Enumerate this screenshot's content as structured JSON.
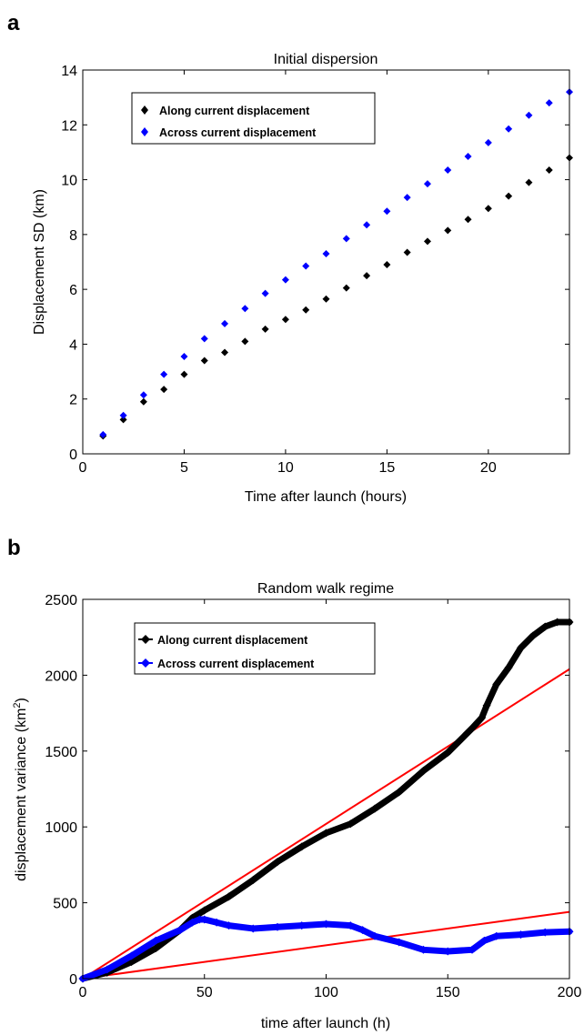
{
  "figure": {
    "panel_a_letter": "a",
    "panel_b_letter": "b"
  },
  "chart_data": [
    {
      "type": "scatter",
      "title": "Initial dispersion",
      "xlabel": "Time after launch (hours)",
      "ylabel": "Displacement SD (km)",
      "xlim": [
        0,
        24
      ],
      "ylim": [
        0,
        14
      ],
      "xticks": [
        "0",
        "5",
        "10",
        "15",
        "20"
      ],
      "yticks": [
        "0",
        "2",
        "4",
        "6",
        "8",
        "10",
        "12",
        "14"
      ],
      "legend_position": "top-left",
      "series": [
        {
          "name": "Along current displacement",
          "color": "#000000",
          "marker": "diamond",
          "x": [
            1,
            2,
            3,
            4,
            5,
            6,
            7,
            8,
            9,
            10,
            11,
            12,
            13,
            14,
            15,
            16,
            17,
            18,
            19,
            20,
            21,
            22,
            23,
            24
          ],
          "y": [
            0.65,
            1.25,
            1.9,
            2.35,
            2.9,
            3.4,
            3.7,
            4.1,
            4.55,
            4.9,
            5.25,
            5.65,
            6.05,
            6.5,
            6.9,
            7.35,
            7.75,
            8.15,
            8.55,
            8.95,
            9.4,
            9.9,
            10.35,
            10.8
          ]
        },
        {
          "name": "Across current displacement",
          "color": "#0000ff",
          "marker": "diamond",
          "x": [
            1,
            2,
            3,
            4,
            5,
            6,
            7,
            8,
            9,
            10,
            11,
            12,
            13,
            14,
            15,
            16,
            17,
            18,
            19,
            20,
            21,
            22,
            23,
            24
          ],
          "y": [
            0.7,
            1.4,
            2.15,
            2.9,
            3.55,
            4.2,
            4.75,
            5.3,
            5.85,
            6.35,
            6.85,
            7.3,
            7.85,
            8.35,
            8.85,
            9.35,
            9.85,
            10.35,
            10.85,
            11.35,
            11.85,
            12.35,
            12.8,
            13.2
          ]
        }
      ]
    },
    {
      "type": "line",
      "title": "Random walk regime",
      "xlabel": "time after launch (h)",
      "ylabel_main": "displacement variance (km",
      "ylabel_sup": "2",
      "ylabel_end": ")",
      "xlim": [
        0,
        200
      ],
      "ylim": [
        0,
        2500
      ],
      "xticks": [
        "0",
        "50",
        "100",
        "150",
        "200"
      ],
      "yticks": [
        "0",
        "500",
        "1000",
        "1500",
        "2000",
        "2500"
      ],
      "legend_position": "top-left",
      "series": [
        {
          "name": "Along current displacement",
          "color": "#000000",
          "marker": "diamond",
          "x": [
            0,
            10,
            20,
            30,
            40,
            45,
            50,
            60,
            70,
            80,
            90,
            100,
            110,
            120,
            130,
            140,
            150,
            160,
            164,
            166,
            170,
            175,
            180,
            185,
            190,
            195,
            200
          ],
          "y": [
            0,
            40,
            110,
            200,
            320,
            400,
            450,
            540,
            650,
            770,
            870,
            960,
            1020,
            1120,
            1230,
            1370,
            1490,
            1650,
            1720,
            1800,
            1940,
            2050,
            2180,
            2260,
            2320,
            2350,
            2350
          ]
        },
        {
          "name": "Across current displacement",
          "color": "#0000ff",
          "marker": "diamond",
          "x": [
            0,
            10,
            20,
            30,
            40,
            45,
            48,
            50,
            55,
            60,
            70,
            80,
            90,
            100,
            110,
            115,
            120,
            130,
            140,
            150,
            160,
            165,
            170,
            180,
            190,
            200
          ],
          "y": [
            0,
            60,
            150,
            250,
            320,
            370,
            390,
            390,
            370,
            350,
            330,
            340,
            350,
            360,
            350,
            320,
            280,
            240,
            190,
            180,
            190,
            250,
            280,
            290,
            305,
            310
          ]
        }
      ],
      "fit_lines": [
        {
          "color": "#ff0000",
          "x": [
            0,
            200
          ],
          "y": [
            0,
            2040
          ]
        },
        {
          "color": "#ff0000",
          "x": [
            0,
            200
          ],
          "y": [
            0,
            440
          ]
        }
      ]
    }
  ]
}
